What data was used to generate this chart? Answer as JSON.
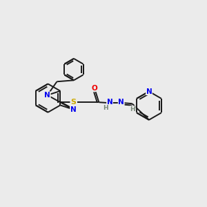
{
  "background_color": "#ebebeb",
  "bond_color": "#1a1a1a",
  "atom_colors": {
    "N": "#0000ee",
    "O": "#ee0000",
    "S": "#ccaa00",
    "H": "#778877",
    "C": "#1a1a1a"
  },
  "figsize": [
    3.0,
    3.0
  ],
  "dpi": 100
}
